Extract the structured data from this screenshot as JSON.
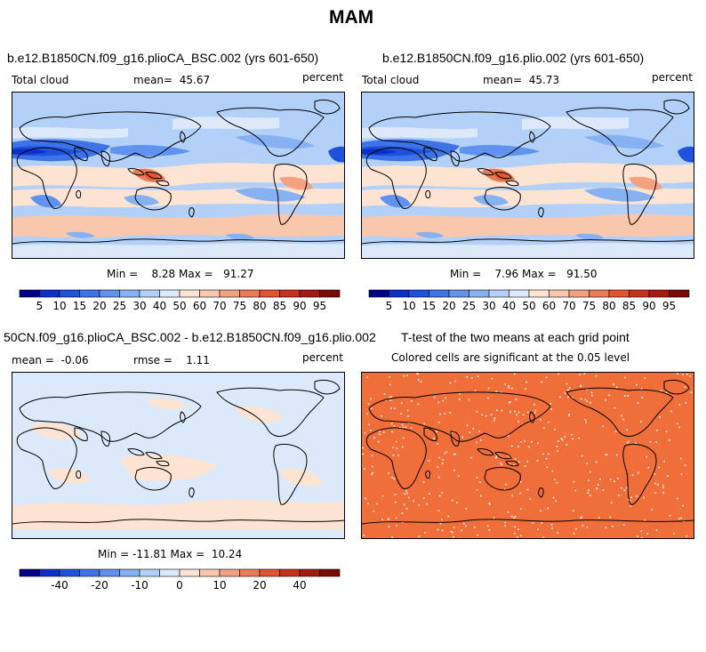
{
  "page": {
    "title": "MAM"
  },
  "panels": [
    {
      "case": "b.e12.B1850CN.f09_g16.plioCA_BSC.002 (yrs 601-650)",
      "variable": "Total cloud",
      "mean_label": "mean=",
      "mean_value": "45.67",
      "units": "percent",
      "min_label": "Min =",
      "min_value": "8.28",
      "max_label": "Max =",
      "max_value": "91.27"
    },
    {
      "case": "b.e12.B1850CN.f09_g16.plio.002 (yrs 601-650)",
      "variable": "Total cloud",
      "mean_label": "mean=",
      "mean_value": "45.73",
      "units": "percent",
      "min_label": "Min =",
      "min_value": "7.96",
      "max_label": "Max =",
      "max_value": "91.50"
    },
    {
      "case": "50CN.f09_g16.plioCA_BSC.002 - b.e12.B1850CN.f09_g16.plio.002",
      "mean_label": "mean =",
      "mean_value": "-0.06",
      "rmse_label": "rmse =",
      "rmse_value": "1.11",
      "units": "percent",
      "min_label": "Min =",
      "min_value": "-11.81",
      "max_label": "Max =",
      "max_value": "10.24"
    },
    {
      "case": "T-test of the two means at each grid point",
      "subtitle": "Colored cells are significant at the 0.05 level"
    }
  ],
  "colorbars": {
    "absolute": {
      "colors": [
        "#00008b",
        "#0a30c8",
        "#1f52dc",
        "#3e73e8",
        "#5f93ef",
        "#86b2f3",
        "#b2d0f8",
        "#dbe9fb",
        "#fde4d2",
        "#f9c7ab",
        "#f3a181",
        "#ec7a56",
        "#e2542e",
        "#c8321a",
        "#a51a10",
        "#7a0a06"
      ],
      "labels": [
        "5",
        "10",
        "15",
        "20",
        "25",
        "30",
        "40",
        "50",
        "60",
        "70",
        "75",
        "80",
        "85",
        "90",
        "95"
      ]
    },
    "difference": {
      "colors": [
        "#00008b",
        "#0a30c8",
        "#1f52dc",
        "#3e73e8",
        "#5f93ef",
        "#86b2f3",
        "#b2d0f8",
        "#dbe9fb",
        "#fde4d2",
        "#f9c7ab",
        "#f3a181",
        "#ec7a56",
        "#e2542e",
        "#c8321a",
        "#a51a10",
        "#7a0a06"
      ],
      "labels": [
        "-40",
        "-20",
        "-10",
        "0",
        "10",
        "20",
        "40"
      ]
    }
  },
  "colors": {
    "significant_fill": "#ef6e3a",
    "diff_background": "#dbe9fb",
    "abs_background": "#b2d0f8"
  }
}
